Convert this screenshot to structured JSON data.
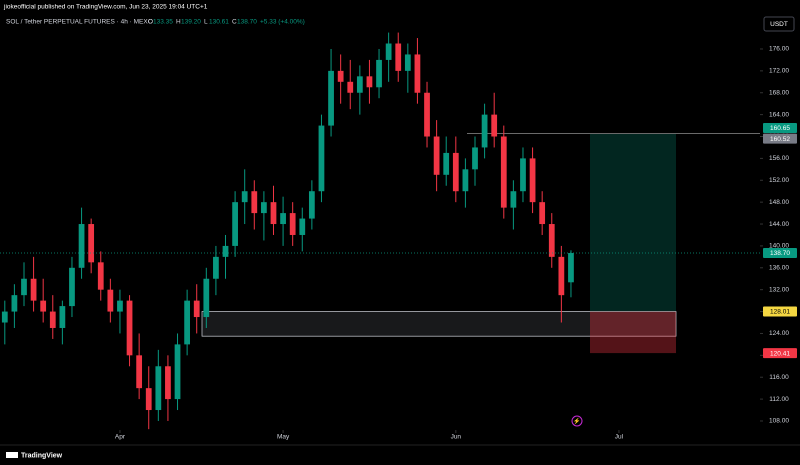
{
  "header": {
    "publisher": "jiokeofficial published on TradingView.com, Jun 23, 2025 19:04 UTC+1",
    "symbol": "SOL / Tether PERPETUAL FUTURES · 4h · MEXC",
    "ohlc": [
      {
        "key": "O",
        "text": "133.35"
      },
      {
        "key": "H",
        "text": "139.20"
      },
      {
        "key": "L",
        "text": "130.61"
      },
      {
        "key": "C",
        "text": "138.70"
      }
    ],
    "change": "+5.33 (+4.00%)",
    "currency": "USDT"
  },
  "footer": {
    "brand": "TradingView"
  },
  "chart_data": {
    "type": "candlestick",
    "up_color": "#089981",
    "down_color": "#f23645",
    "candles": [
      [
        126,
        130,
        122,
        128
      ],
      [
        128,
        133,
        125,
        131
      ],
      [
        131,
        137,
        129,
        134
      ],
      [
        134,
        138,
        128,
        130
      ],
      [
        130,
        134,
        126,
        128
      ],
      [
        128,
        131,
        123,
        125
      ],
      [
        125,
        130,
        122,
        129
      ],
      [
        129,
        138,
        127,
        136
      ],
      [
        136,
        147,
        134,
        144
      ],
      [
        144,
        145,
        135,
        137
      ],
      [
        137,
        139,
        130,
        132
      ],
      [
        132,
        134,
        126,
        128
      ],
      [
        128,
        132,
        124,
        130
      ],
      [
        130,
        131,
        118,
        120
      ],
      [
        120,
        124,
        112,
        114
      ],
      [
        114,
        118,
        106.5,
        110
      ],
      [
        110,
        121,
        108,
        118
      ],
      [
        118,
        120,
        108,
        112
      ],
      [
        112,
        124,
        110,
        122
      ],
      [
        122,
        132,
        120,
        130
      ],
      [
        130,
        133,
        124,
        127
      ],
      [
        127,
        136,
        125,
        134
      ],
      [
        134,
        140,
        131,
        138
      ],
      [
        138,
        142,
        134,
        140
      ],
      [
        140,
        150,
        138,
        148
      ],
      [
        148,
        154,
        144,
        150
      ],
      [
        150,
        152,
        143,
        146
      ],
      [
        146,
        150,
        141,
        148
      ],
      [
        148,
        151,
        142,
        144
      ],
      [
        144,
        149,
        140,
        146
      ],
      [
        146,
        148,
        140,
        142
      ],
      [
        142,
        147,
        139,
        145
      ],
      [
        145,
        152,
        143,
        150
      ],
      [
        150,
        164,
        148,
        162
      ],
      [
        162,
        176,
        160,
        172
      ],
      [
        172,
        175,
        166,
        170
      ],
      [
        170,
        174,
        165,
        168
      ],
      [
        168,
        173,
        164,
        171
      ],
      [
        171,
        174,
        166,
        169
      ],
      [
        169,
        176,
        167,
        174
      ],
      [
        174,
        179,
        170,
        177
      ],
      [
        177,
        179,
        170,
        172
      ],
      [
        172,
        177,
        168,
        175
      ],
      [
        175,
        178,
        166,
        168
      ],
      [
        168,
        170,
        158,
        160
      ],
      [
        160,
        163,
        150,
        153
      ],
      [
        153,
        160,
        151,
        157
      ],
      [
        157,
        160,
        148,
        150
      ],
      [
        150,
        156,
        147,
        154
      ],
      [
        154,
        160,
        151,
        158
      ],
      [
        158,
        166,
        156,
        164
      ],
      [
        164,
        168,
        158,
        160
      ],
      [
        160,
        162,
        145,
        147
      ],
      [
        147,
        152,
        143,
        150
      ],
      [
        150,
        158,
        148,
        156
      ],
      [
        156,
        158,
        146,
        148
      ],
      [
        148,
        150,
        142,
        144
      ],
      [
        144,
        146,
        136,
        138
      ],
      [
        138,
        140,
        126,
        131
      ],
      [
        133.35,
        139.2,
        130.61,
        138.7
      ]
    ],
    "xlim": [
      -0.5,
      78.7
    ],
    "xticks": [
      {
        "value": 12,
        "label": "Apr"
      },
      {
        "value": 29,
        "label": "May"
      },
      {
        "value": 47,
        "label": "Jun"
      },
      {
        "value": 64,
        "label": "Jul"
      }
    ],
    "ylim": [
      106.35,
      179.47
    ],
    "yticks": [
      {
        "value": 108,
        "label": "108.00"
      },
      {
        "value": 112,
        "label": "112.00"
      },
      {
        "value": 116,
        "label": "116.00"
      },
      {
        "value": 120,
        "label": "120.00"
      },
      {
        "value": 124,
        "label": "124.00"
      },
      {
        "value": 128,
        "label": "128.00"
      },
      {
        "value": 132,
        "label": "132.00"
      },
      {
        "value": 136,
        "label": "136.00"
      },
      {
        "value": 140,
        "label": "140.00"
      },
      {
        "value": 144,
        "label": "144.00"
      },
      {
        "value": 148,
        "label": "148.00"
      },
      {
        "value": 152,
        "label": "152.00"
      },
      {
        "value": 156,
        "label": "156.00"
      },
      {
        "value": 160,
        "label": "160.00"
      },
      {
        "value": 164,
        "label": "164.00"
      },
      {
        "value": 168,
        "label": "168.00"
      },
      {
        "value": 172,
        "label": "172.00"
      },
      {
        "value": 176,
        "label": "176.00"
      }
    ],
    "zone": {
      "top": 128.01,
      "bottom": 123.5
    },
    "position": {
      "target": 160.52,
      "entry": 128.01,
      "stop": 120.41
    },
    "price_tags": [
      {
        "value": 160.65,
        "label": "160.65",
        "color": "#089981"
      },
      {
        "value": 160.52,
        "label": "160.52",
        "color": "#787b86"
      },
      {
        "value": 138.7,
        "label": "138.70",
        "color": "#089981"
      },
      {
        "value": 128.01,
        "label": "128.01",
        "color": "#f5d742"
      },
      {
        "value": 120.41,
        "label": "120.41",
        "color": "#f23645"
      }
    ]
  }
}
